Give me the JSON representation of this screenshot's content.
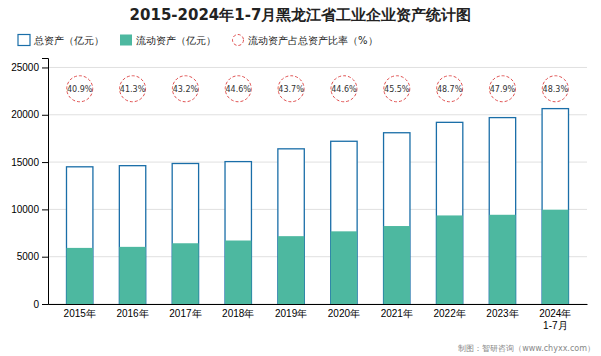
{
  "chart_data": {
    "type": "bar",
    "title": "2015-2024年1-7月黑龙江省工业企业资产统计图",
    "categories": [
      "2015年",
      "2016年",
      "2017年",
      "2018年",
      "2019年",
      "2020年",
      "2021年",
      "2022年",
      "2023年",
      "2024年\n1-7月"
    ],
    "series": [
      {
        "name": "总资产（亿元）",
        "color": "#1a6ea8",
        "values": [
          14500,
          14620,
          14850,
          15050,
          16400,
          17200,
          18100,
          19200,
          19700,
          20650
        ]
      },
      {
        "name": "流动资产（亿元）",
        "color": "#4db8a0",
        "values": [
          5930,
          6040,
          6420,
          6710,
          7170,
          7680,
          8240,
          9360,
          9430,
          9970
        ]
      },
      {
        "name": "流动资产占总资产比率（%）",
        "type": "label",
        "color": "#e05050",
        "marker": "circle",
        "line_style": "dashed",
        "data_labels": true,
        "values": [
          40.9,
          41.3,
          43.2,
          44.6,
          43.7,
          44.6,
          45.5,
          48.7,
          47.9,
          48.3
        ],
        "value_labels": [
          "40.9%",
          "41.3%",
          "43.2%",
          "44.6%",
          "43.7%",
          "44.6%",
          "45.5%",
          "48.7%",
          "47.9%",
          "48.3%"
        ]
      }
    ],
    "ylim": [
      0,
      26000
    ],
    "yticks": [
      0,
      5000,
      10000,
      15000,
      20000,
      25000
    ],
    "grid": true,
    "legend": "top",
    "annotations": [
      "制图：智研咨询（www.chyxx.com）"
    ]
  }
}
